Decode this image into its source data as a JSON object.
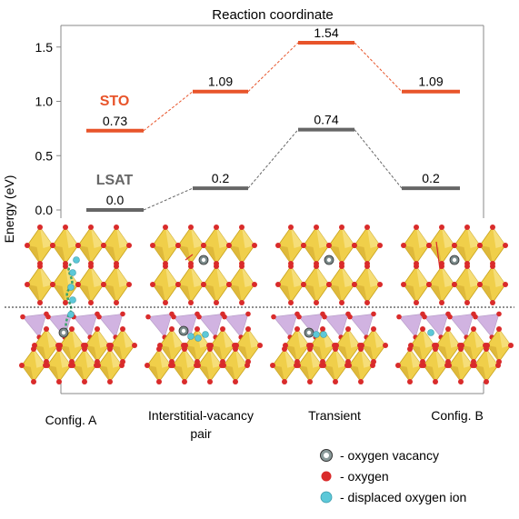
{
  "chart_data": {
    "type": "line",
    "title": "Reaction coordinate",
    "ylabel": "Energy (eV)",
    "ylim": [
      -0.12,
      1.7
    ],
    "yticks": [
      "0.0",
      "0.5",
      "1.0",
      "1.5"
    ],
    "categories": [
      "Config. A",
      "Interstitial-vacancy pair",
      "Transient",
      "Config. B"
    ],
    "series": [
      {
        "name": "STO",
        "color": "#e8542a",
        "values": [
          0.73,
          1.09,
          1.54,
          1.09
        ],
        "value_labels": [
          "0.73",
          "1.09",
          "1.54",
          "1.09"
        ]
      },
      {
        "name": "LSAT",
        "color": "#666666",
        "values": [
          0.0,
          0.2,
          0.74,
          0.2
        ],
        "value_labels": [
          "0.0",
          "0.2",
          "0.74",
          "0.2"
        ]
      }
    ]
  },
  "config_labels": [
    "Config. A",
    "Interstitial-vacancy pair",
    "Transient",
    "Config. B"
  ],
  "legend": {
    "vacancy": "- oxygen vacancy",
    "oxygen": "- oxygen",
    "displaced": "- displaced oxygen ion"
  },
  "colors": {
    "octahedron": "#f0cf4a",
    "octahedron_edge": "#c8a21c",
    "tetrahedron": "#c9a6dc",
    "oxygen": "#d92b2b",
    "displaced_oxygen": "#5cc8d8",
    "vacancy": "#7a8a8a",
    "migration_path": "#3aa36a"
  }
}
